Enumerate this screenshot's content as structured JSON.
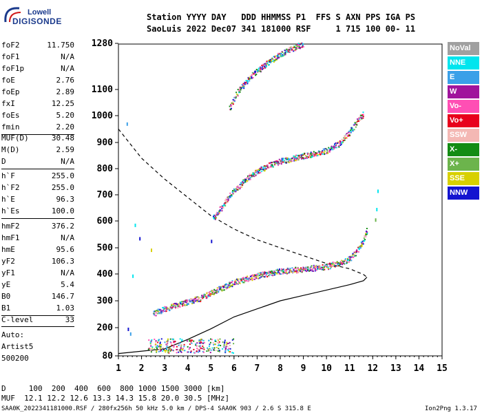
{
  "logo": {
    "line1": "Lowell",
    "line2": "DIGISONDE"
  },
  "header": {
    "line1": "Station YYYY DAY   DDD HHMMSS P1  FFS S AXN PPS IGA PS",
    "line2": "SaoLuis 2022 Dec07 341 181000 RSF     1 715 100 00- 11"
  },
  "params_group1": [
    {
      "label": "foF2",
      "value": "11.750"
    },
    {
      "label": "foF1",
      "value": "N/A"
    },
    {
      "label": "foF1p",
      "value": "N/A"
    },
    {
      "label": "foE",
      "value": "2.76"
    },
    {
      "label": "foEp",
      "value": "2.89"
    },
    {
      "label": "fxI",
      "value": "12.25"
    },
    {
      "label": "foEs",
      "value": "5.20"
    },
    {
      "label": "fmin",
      "value": "2.20"
    }
  ],
  "params_group2": [
    {
      "label": "MUF(D)",
      "value": "30.48"
    },
    {
      "label": "M(D)",
      "value": "2.59"
    },
    {
      "label": "D",
      "value": "N/A"
    }
  ],
  "params_group3": [
    {
      "label": "h`F",
      "value": "255.0"
    },
    {
      "label": "h`F2",
      "value": "255.0"
    },
    {
      "label": "h`E",
      "value": "96.3"
    },
    {
      "label": "h`Es",
      "value": "100.0"
    }
  ],
  "params_group4": [
    {
      "label": "hmF2",
      "value": "376.2"
    },
    {
      "label": "hmF1",
      "value": "N/A"
    },
    {
      "label": "hmE",
      "value": "95.6"
    },
    {
      "label": "yF2",
      "value": "106.3"
    },
    {
      "label": "yF1",
      "value": "N/A"
    },
    {
      "label": "yE",
      "value": "5.4"
    },
    {
      "label": "B0",
      "value": "146.7"
    },
    {
      "label": "B1",
      "value": "1.03"
    }
  ],
  "params_group5": [
    {
      "label": "C-level",
      "value": "33"
    }
  ],
  "auto": {
    "line1": "Auto:",
    "line2": "Artist5",
    "line3": "500200"
  },
  "legend": [
    {
      "label": "NoVal",
      "bg": "#a0a0a0",
      "fg": "#ffffff"
    },
    {
      "label": "NNE",
      "bg": "#00e5ee",
      "fg": "#ffffff"
    },
    {
      "label": "E",
      "bg": "#3aa0e8",
      "fg": "#ffffff"
    },
    {
      "label": "W",
      "bg": "#a0149c",
      "fg": "#ffffff"
    },
    {
      "label": "Vo-",
      "bg": "#ff4fb4",
      "fg": "#ffffff"
    },
    {
      "label": "Vo+",
      "bg": "#e8001c",
      "fg": "#ffffff"
    },
    {
      "label": "SSW",
      "bg": "#f4b8b4",
      "fg": "#ffffff"
    },
    {
      "label": "X-",
      "bg": "#148c14",
      "fg": "#ffffff"
    },
    {
      "label": "X+",
      "bg": "#6cb44c",
      "fg": "#ffffff"
    },
    {
      "label": "SSE",
      "bg": "#d8d000",
      "fg": "#ffffff"
    },
    {
      "label": "NNW",
      "bg": "#1414d0",
      "fg": "#ffffff"
    }
  ],
  "footer": {
    "d_line": "D     100  200  400  600  800 1000 1500 3000 [km]",
    "muf_line": "MUF  12.1 12.2 12.6 13.3 14.3 15.8 20.0 30.5 [MHz]",
    "file_line": "SAA0K_2022341181000.RSF / 280fx256h 50 kHz 5.0 km / DPS-4 SAA0K 903 / 2.6 S 315.8 E",
    "version": "Ion2Png 1.3.17"
  },
  "chart_data": {
    "type": "scatter",
    "title": "",
    "xlabel": "",
    "ylabel": "",
    "xlim": [
      1,
      15
    ],
    "ylim": [
      80,
      1280
    ],
    "x_ticks": [
      1,
      2,
      3,
      4,
      5,
      6,
      7,
      8,
      9,
      10,
      11,
      12,
      13,
      14,
      15
    ],
    "y_ticks": [
      80,
      200,
      300,
      400,
      500,
      600,
      700,
      800,
      900,
      1000,
      1100,
      1280
    ],
    "traces": [
      {
        "name": "F2 O-trace",
        "points": [
          [
            2.5,
            255
          ],
          [
            3.5,
            285
          ],
          [
            4.5,
            310
          ],
          [
            5.2,
            340
          ],
          [
            6,
            370
          ],
          [
            7,
            395
          ],
          [
            8,
            412
          ],
          [
            9,
            420
          ],
          [
            10,
            430
          ],
          [
            10.6,
            445
          ],
          [
            11,
            460
          ],
          [
            11.3,
            490
          ],
          [
            11.6,
            530
          ],
          [
            11.75,
            575
          ]
        ]
      },
      {
        "name": "F2 second hop",
        "points": [
          [
            5.1,
            610
          ],
          [
            5.5,
            660
          ],
          [
            6,
            720
          ],
          [
            6.5,
            760
          ],
          [
            7,
            790
          ],
          [
            7.5,
            815
          ],
          [
            8,
            830
          ],
          [
            8.5,
            840
          ],
          [
            9,
            850
          ],
          [
            9.5,
            860
          ],
          [
            10,
            870
          ],
          [
            10.5,
            895
          ],
          [
            11,
            940
          ],
          [
            11.4,
            990
          ],
          [
            11.6,
            1010
          ]
        ]
      },
      {
        "name": "F2 third hop",
        "points": [
          [
            5.8,
            1030
          ],
          [
            6.2,
            1100
          ],
          [
            6.8,
            1160
          ],
          [
            7.5,
            1210
          ],
          [
            8,
            1240
          ],
          [
            8.5,
            1260
          ],
          [
            9,
            1280
          ]
        ]
      }
    ],
    "profile_solid": [
      [
        1.0,
        90
      ],
      [
        3,
        110
      ],
      [
        4,
        150
      ],
      [
        5,
        195
      ],
      [
        6,
        240
      ],
      [
        7,
        270
      ],
      [
        8,
        300
      ],
      [
        9,
        320
      ],
      [
        10,
        340
      ],
      [
        11,
        360
      ],
      [
        11.6,
        375
      ],
      [
        11.75,
        388
      ]
    ],
    "profile_dashed": [
      [
        1,
        950
      ],
      [
        2,
        840
      ],
      [
        3,
        760
      ],
      [
        4,
        690
      ],
      [
        5,
        620
      ],
      [
        6,
        570
      ],
      [
        7,
        530
      ],
      [
        8,
        500
      ],
      [
        9,
        470
      ],
      [
        10,
        440
      ],
      [
        11,
        420
      ],
      [
        11.6,
        398
      ],
      [
        11.75,
        388
      ]
    ]
  }
}
